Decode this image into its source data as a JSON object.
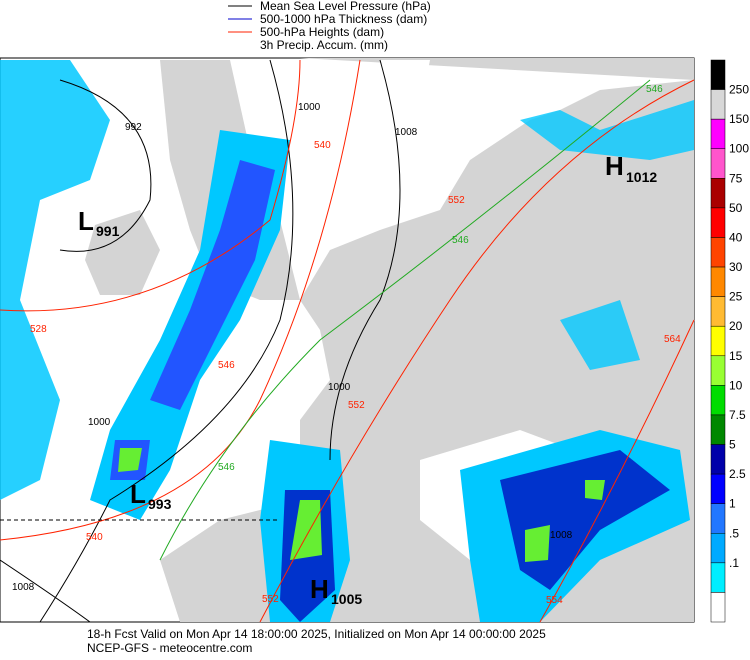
{
  "legend": {
    "items": [
      "Mean Sea Level Pressure (hPa)",
      "500-1000 hPa Thickness (dam)",
      "500-hPa Heights (dam)",
      "3h Precip. Accum. (mm)"
    ],
    "colors": [
      "#000000",
      "#0000cc",
      "#ff2200"
    ]
  },
  "colorbar": {
    "labels": [
      "250",
      "150",
      "100",
      "75",
      "50",
      "40",
      "30",
      "25",
      "20",
      "15",
      "10",
      "7.5",
      "5",
      "2.5",
      "1",
      ".5",
      ".1"
    ],
    "colors": [
      "#000000",
      "#d8d8d8",
      "#ff00ff",
      "#ff55cc",
      "#aa0000",
      "#ff0000",
      "#ff4400",
      "#ff8800",
      "#ffbb33",
      "#ffff00",
      "#99ff33",
      "#00dd00",
      "#008800",
      "#0000aa",
      "#0000ff",
      "#2277ff",
      "#00aaff",
      "#00eeff",
      "#ffffff"
    ]
  },
  "pressure_centers": [
    {
      "letter": "L",
      "value": "991"
    },
    {
      "letter": "L",
      "value": "993"
    },
    {
      "letter": "H",
      "value": "1012"
    },
    {
      "letter": "H",
      "value": "1005"
    }
  ],
  "contour_labels": [
    "992",
    "1000",
    "1008",
    "1000",
    "1000",
    "1008",
    "1008",
    "540",
    "528",
    "546",
    "552",
    "546",
    "540",
    "552",
    "552",
    "546",
    "564",
    "546",
    "554"
  ],
  "footer": {
    "line1": "18-h Fcst Valid on Mon Apr 14 18:00:00 2025, Initialized on Mon Apr 14 00:00:00 2025",
    "line2": "NCEP-GFS  -  meteocentre.com"
  }
}
